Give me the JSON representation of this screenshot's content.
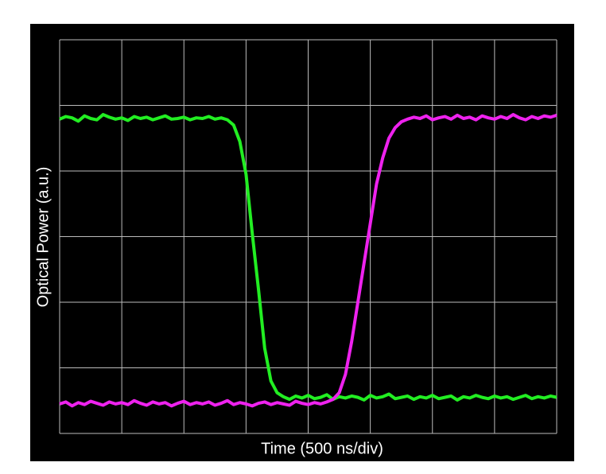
{
  "chart_data": {
    "type": "line",
    "xlabel": "Time (500 ns/div)",
    "ylabel": "Optical Power (a.u.)",
    "grid": true,
    "xlim": [
      0,
      8
    ],
    "ylim": [
      0,
      6
    ],
    "xticks": [
      0,
      1,
      2,
      3,
      4,
      5,
      6,
      7,
      8
    ],
    "yticks": [
      0,
      1,
      2,
      3,
      4,
      5,
      6
    ],
    "x": [
      0,
      0.1,
      0.2,
      0.3,
      0.4,
      0.5,
      0.6,
      0.7,
      0.8,
      0.9,
      1,
      1.1,
      1.2,
      1.3,
      1.4,
      1.5,
      1.6,
      1.7,
      1.8,
      1.9,
      2,
      2.1,
      2.2,
      2.3,
      2.4,
      2.5,
      2.6,
      2.7,
      2.8,
      2.9,
      3,
      3.1,
      3.2,
      3.3,
      3.4,
      3.5,
      3.6,
      3.7,
      3.8,
      3.9,
      4,
      4.1,
      4.2,
      4.3,
      4.4,
      4.5,
      4.6,
      4.7,
      4.8,
      4.9,
      5,
      5.1,
      5.2,
      5.3,
      5.4,
      5.5,
      5.6,
      5.7,
      5.8,
      5.9,
      6,
      6.1,
      6.2,
      6.3,
      6.4,
      6.5,
      6.6,
      6.7,
      6.8,
      6.9,
      7,
      7.1,
      7.2,
      7.3,
      7.4,
      7.5,
      7.6,
      7.7,
      7.8,
      7.9,
      8
    ],
    "series": [
      {
        "color": "#22ee22",
        "values": [
          4.79,
          4.83,
          4.81,
          4.76,
          4.84,
          4.8,
          4.78,
          4.86,
          4.82,
          4.79,
          4.81,
          4.77,
          4.83,
          4.8,
          4.82,
          4.78,
          4.81,
          4.84,
          4.79,
          4.8,
          4.82,
          4.78,
          4.81,
          4.8,
          4.83,
          4.79,
          4.81,
          4.78,
          4.7,
          4.45,
          3.95,
          3.05,
          2.2,
          1.3,
          0.8,
          0.62,
          0.56,
          0.52,
          0.57,
          0.54,
          0.58,
          0.53,
          0.55,
          0.59,
          0.52,
          0.56,
          0.54,
          0.57,
          0.55,
          0.51,
          0.58,
          0.54,
          0.56,
          0.6,
          0.53,
          0.55,
          0.57,
          0.52,
          0.56,
          0.54,
          0.58,
          0.53,
          0.55,
          0.57,
          0.51,
          0.56,
          0.54,
          0.58,
          0.55,
          0.53,
          0.57,
          0.54,
          0.56,
          0.52,
          0.55,
          0.58,
          0.53,
          0.56,
          0.54,
          0.57,
          0.55
        ]
      },
      {
        "color": "#ee22ee",
        "values": [
          0.45,
          0.48,
          0.42,
          0.47,
          0.44,
          0.49,
          0.46,
          0.43,
          0.48,
          0.45,
          0.47,
          0.44,
          0.5,
          0.46,
          0.43,
          0.48,
          0.45,
          0.47,
          0.42,
          0.46,
          0.49,
          0.44,
          0.47,
          0.45,
          0.48,
          0.43,
          0.46,
          0.5,
          0.44,
          0.47,
          0.45,
          0.42,
          0.46,
          0.48,
          0.44,
          0.47,
          0.45,
          0.43,
          0.49,
          0.46,
          0.44,
          0.47,
          0.45,
          0.48,
          0.52,
          0.62,
          0.9,
          1.4,
          2.0,
          2.6,
          3.2,
          3.8,
          4.2,
          4.5,
          4.66,
          4.75,
          4.79,
          4.82,
          4.8,
          4.84,
          4.78,
          4.81,
          4.83,
          4.79,
          4.85,
          4.8,
          4.82,
          4.78,
          4.84,
          4.81,
          4.79,
          4.83,
          4.8,
          4.86,
          4.81,
          4.78,
          4.83,
          4.8,
          4.84,
          4.82,
          4.85
        ]
      }
    ]
  }
}
